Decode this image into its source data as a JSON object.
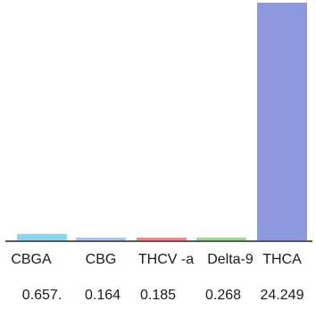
{
  "chart_data": {
    "type": "bar",
    "categories": [
      "CBGA",
      "CBG",
      "THCV -a",
      "Delta-9",
      "THCA"
    ],
    "values": [
      0.657,
      0.164,
      0.185,
      0.268,
      24.249
    ],
    "value_labels": [
      "0.657.",
      "0.164",
      "0.185",
      "0.268",
      "24.249"
    ],
    "title": "",
    "xlabel": "",
    "ylabel": "",
    "ylim": [
      0,
      24.249
    ],
    "grid": false,
    "legend": "none",
    "colors": [
      "#8fd3ee",
      "#a9c4e4",
      "#e68a8a",
      "#9fd49a",
      "#8f99e0"
    ],
    "axis_color": "#222222"
  }
}
